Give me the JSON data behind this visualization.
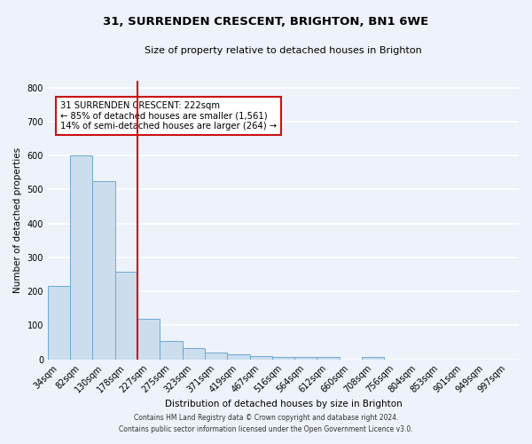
{
  "title": "31, SURRENDEN CRESCENT, BRIGHTON, BN1 6WE",
  "subtitle": "Size of property relative to detached houses in Brighton",
  "xlabel": "Distribution of detached houses by size in Brighton",
  "ylabel": "Number of detached properties",
  "categories": [
    "34sqm",
    "82sqm",
    "130sqm",
    "178sqm",
    "227sqm",
    "275sqm",
    "323sqm",
    "371sqm",
    "419sqm",
    "467sqm",
    "516sqm",
    "564sqm",
    "612sqm",
    "660sqm",
    "708sqm",
    "756sqm",
    "804sqm",
    "853sqm",
    "901sqm",
    "949sqm",
    "997sqm"
  ],
  "values": [
    215,
    600,
    525,
    258,
    118,
    55,
    32,
    20,
    15,
    10,
    8,
    8,
    8,
    0,
    8,
    0,
    0,
    0,
    0,
    0,
    0
  ],
  "bar_color": "#ccdded",
  "bar_edge_color": "#6aaad4",
  "vline_color": "#cc1111",
  "vline_x_index": 4,
  "annotation_text": "31 SURRENDEN CRESCENT: 222sqm\n← 85% of detached houses are smaller (1,561)\n14% of semi-detached houses are larger (264) →",
  "annotation_box_facecolor": "#ffffff",
  "annotation_box_edgecolor": "#cc1111",
  "ylim": [
    0,
    820
  ],
  "yticks": [
    0,
    100,
    200,
    300,
    400,
    500,
    600,
    700,
    800
  ],
  "background_color": "#eef2fb",
  "grid_color": "#ffffff",
  "footer_line1": "Contains HM Land Registry data © Crown copyright and database right 2024.",
  "footer_line2": "Contains public sector information licensed under the Open Government Licence v3.0."
}
